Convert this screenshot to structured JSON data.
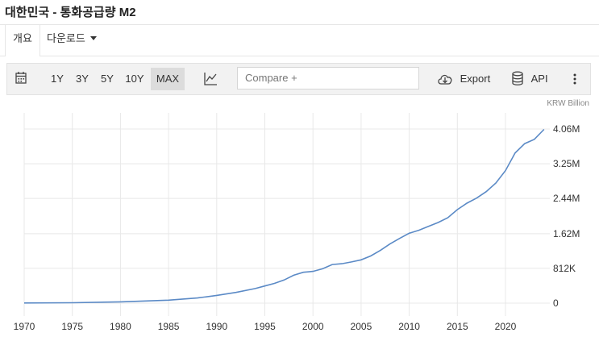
{
  "title": "대한민국 - 통화공급량 M2",
  "tabs": {
    "overview": "개요",
    "download": "다운로드"
  },
  "toolbar": {
    "ranges": [
      "1Y",
      "3Y",
      "5Y",
      "10Y",
      "MAX"
    ],
    "selected_range": "MAX",
    "compare_placeholder": "Compare +",
    "export_label": "Export",
    "api_label": "API",
    "icons": [
      "calendar-icon",
      "line-chart-icon",
      "cloud-download-icon",
      "database-icon",
      "more-vertical-icon"
    ]
  },
  "colors": {
    "line": "#5b8ac6",
    "grid": "#e8e8e8",
    "selected_range_bg": "#dcdcdc"
  },
  "chart_data": {
    "type": "line",
    "unit_label": "KRW Billion",
    "x_ticks": [
      "1970",
      "1975",
      "1980",
      "1985",
      "1990",
      "1995",
      "2000",
      "2005",
      "2010",
      "2015",
      "2020"
    ],
    "y_ticks": [
      {
        "value": 0,
        "label": "0"
      },
      {
        "value": 812000,
        "label": "812K"
      },
      {
        "value": 1620000,
        "label": "1.62M"
      },
      {
        "value": 2440000,
        "label": "2.44M"
      },
      {
        "value": 3250000,
        "label": "3.25M"
      },
      {
        "value": 4060000,
        "label": "4.06M"
      }
    ],
    "xlim": [
      1970,
      2024.5
    ],
    "ylim": [
      0,
      4060000
    ],
    "grid": true,
    "series": [
      {
        "x": [
          1970,
          1975,
          1980,
          1985,
          1988,
          1990,
          1992,
          1994,
          1995,
          1996,
          1997,
          1998,
          1999,
          2000,
          2001,
          2002,
          2003,
          2004,
          2005,
          2006,
          2007,
          2008,
          2009,
          2010,
          2011,
          2012,
          2013,
          2014,
          2015,
          2016,
          2017,
          2018,
          2019,
          2020,
          2021,
          2022,
          2023,
          2024
        ],
        "y": [
          3000,
          9000,
          30000,
          70000,
          120000,
          180000,
          250000,
          340000,
          400000,
          460000,
          540000,
          650000,
          720000,
          740000,
          800000,
          900000,
          920000,
          960000,
          1010000,
          1100000,
          1230000,
          1380000,
          1510000,
          1630000,
          1700000,
          1790000,
          1880000,
          1990000,
          2180000,
          2330000,
          2450000,
          2600000,
          2800000,
          3090000,
          3500000,
          3720000,
          3820000,
          4050000
        ]
      }
    ]
  }
}
